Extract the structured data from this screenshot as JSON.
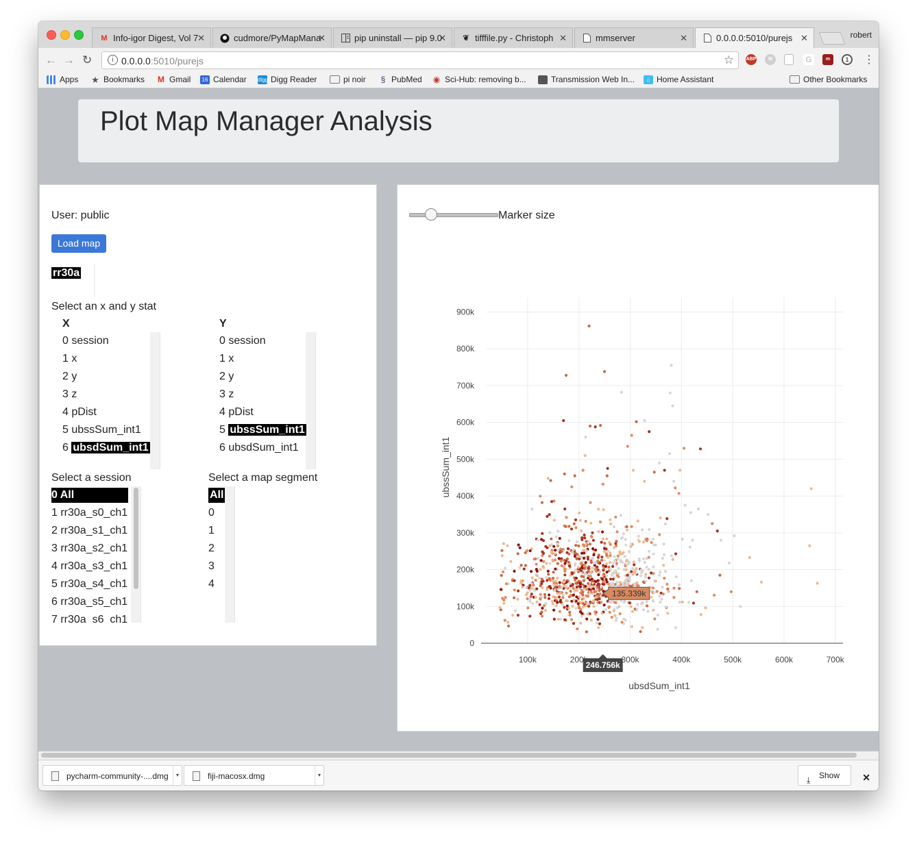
{
  "browser": {
    "tabs": [
      {
        "label": "Info-igor Digest, Vol 7",
        "icon": "gmail-icon"
      },
      {
        "label": "cudmore/PyMapMana",
        "icon": "github-icon"
      },
      {
        "label": "pip uninstall — pip 9.0",
        "icon": "doc-icon"
      },
      {
        "label": "tifffile.py - Christoph",
        "icon": "uci-icon"
      },
      {
        "label": "mmserver",
        "icon": "page-icon"
      },
      {
        "label": "0.0.0.0:5010/purejs",
        "icon": "page-icon"
      }
    ],
    "profile_name": "robert",
    "url_host": "0.0.0.0",
    "url_rest": ":5010/purejs",
    "bookmarks": [
      "Apps",
      "Bookmarks",
      "Gmail",
      "Calendar",
      "Digg Reader",
      "pi noir",
      "PubMed",
      "Sci-Hub: removing b...",
      "Transmission Web In...",
      "Home Assistant"
    ],
    "other_bookmarks": "Other Bookmarks",
    "calendar_day": "16",
    "ext_abp": "ABP"
  },
  "page": {
    "title": "Plot Map Manager Analysis",
    "user_label": "User: public",
    "load_button": "Load map",
    "map_name": "rr30a",
    "stat_prompt": "Select an x and y stat",
    "x_header": "X",
    "y_header": "Y",
    "stats": [
      {
        "num": "0",
        "name": "session"
      },
      {
        "num": "1",
        "name": "x"
      },
      {
        "num": "2",
        "name": "y"
      },
      {
        "num": "3",
        "name": "z"
      },
      {
        "num": "4",
        "name": "pDist"
      },
      {
        "num": "5",
        "name": "ubssSum_int1"
      },
      {
        "num": "6",
        "name": "ubsdSum_int1"
      }
    ],
    "x_selected_index": 6,
    "y_selected_index": 5,
    "session_prompt": "Select a session",
    "sessions": [
      "0 All",
      "1 rr30a_s0_ch1",
      "2 rr30a_s1_ch1",
      "3 rr30a_s2_ch1",
      "4 rr30a_s3_ch1",
      "5 rr30a_s4_ch1",
      "6 rr30a_s5_ch1",
      "7 rr30a_s6_ch1"
    ],
    "segment_prompt": "Select a map segment",
    "segments": [
      "All",
      "0",
      "1",
      "2",
      "3",
      "4"
    ],
    "marker_size_label": "Marker size",
    "marker_size_value": 0.25
  },
  "chart_data": {
    "type": "scatter",
    "xlabel": "ubsdSum_int1",
    "ylabel": "ubssSum_int1",
    "xlim": [
      20000,
      715000
    ],
    "ylim": [
      0,
      940000
    ],
    "x_ticks": [
      {
        "value": 100000,
        "label": "100k"
      },
      {
        "value": 200000,
        "label": "200k"
      },
      {
        "value": 300000,
        "label": "300k"
      },
      {
        "value": 400000,
        "label": "400k"
      },
      {
        "value": 500000,
        "label": "500k"
      },
      {
        "value": 600000,
        "label": "600k"
      },
      {
        "value": 700000,
        "label": "700k"
      }
    ],
    "y_ticks": [
      {
        "value": 0,
        "label": "0"
      },
      {
        "value": 100000,
        "label": "100k"
      },
      {
        "value": 200000,
        "label": "200k"
      },
      {
        "value": 300000,
        "label": "300k"
      },
      {
        "value": 400000,
        "label": "400k"
      },
      {
        "value": 500000,
        "label": "500k"
      },
      {
        "value": 600000,
        "label": "600k"
      },
      {
        "value": 700000,
        "label": "700k"
      },
      {
        "value": 800000,
        "label": "800k"
      },
      {
        "value": 900000,
        "label": "900k"
      }
    ],
    "grid": true,
    "colors": [
      "#d6d6d6",
      "#f0b890",
      "#e08a5c",
      "#c86a45",
      "#a8321e",
      "#8a1414"
    ],
    "cluster": {
      "center_x": 220000,
      "center_y": 165000,
      "spread_x": 75000,
      "spread_y": 80000,
      "count": 1000
    },
    "series": [
      {
        "values": [
          {
            "x": 220000,
            "y": 862000,
            "c": 3
          },
          {
            "x": 250000,
            "y": 738000,
            "c": 3
          },
          {
            "x": 175000,
            "y": 728000,
            "c": 3
          },
          {
            "x": 380000,
            "y": 755000,
            "c": 0
          },
          {
            "x": 378000,
            "y": 680000,
            "c": 0
          },
          {
            "x": 283000,
            "y": 682000,
            "c": 0
          },
          {
            "x": 383000,
            "y": 645000,
            "c": 0
          },
          {
            "x": 170000,
            "y": 605000,
            "c": 4
          },
          {
            "x": 222000,
            "y": 590000,
            "c": 3
          },
          {
            "x": 232000,
            "y": 588000,
            "c": 4
          },
          {
            "x": 242000,
            "y": 592000,
            "c": 3
          },
          {
            "x": 312000,
            "y": 602000,
            "c": 3
          },
          {
            "x": 328000,
            "y": 605000,
            "c": 0
          },
          {
            "x": 337000,
            "y": 575000,
            "c": 4
          },
          {
            "x": 213000,
            "y": 560000,
            "c": 0
          },
          {
            "x": 303000,
            "y": 565000,
            "c": 2
          },
          {
            "x": 295000,
            "y": 535000,
            "c": 2
          },
          {
            "x": 377000,
            "y": 515000,
            "c": 0
          },
          {
            "x": 405000,
            "y": 530000,
            "c": 2
          },
          {
            "x": 437000,
            "y": 528000,
            "c": 4
          },
          {
            "x": 212000,
            "y": 510000,
            "c": 1
          },
          {
            "x": 653000,
            "y": 420000,
            "c": 1
          },
          {
            "x": 650000,
            "y": 265000,
            "c": 1
          },
          {
            "x": 665000,
            "y": 163000,
            "c": 1
          },
          {
            "x": 556000,
            "y": 166000,
            "c": 1
          },
          {
            "x": 533000,
            "y": 233000,
            "c": 1
          },
          {
            "x": 503000,
            "y": 292000,
            "c": 0
          },
          {
            "x": 497000,
            "y": 140000,
            "c": 2
          },
          {
            "x": 477000,
            "y": 280000,
            "c": 0
          },
          {
            "x": 470000,
            "y": 305000,
            "c": 4
          },
          {
            "x": 460000,
            "y": 325000,
            "c": 2
          },
          {
            "x": 475000,
            "y": 185000,
            "c": 3
          },
          {
            "x": 447000,
            "y": 96000,
            "c": 1
          },
          {
            "x": 493000,
            "y": 218000,
            "c": 0
          },
          {
            "x": 452000,
            "y": 350000,
            "c": 0
          },
          {
            "x": 433000,
            "y": 365000,
            "c": 0
          },
          {
            "x": 418000,
            "y": 355000,
            "c": 0
          },
          {
            "x": 407000,
            "y": 375000,
            "c": 0
          },
          {
            "x": 397000,
            "y": 470000,
            "c": 1
          },
          {
            "x": 395000,
            "y": 407000,
            "c": 2
          },
          {
            "x": 388000,
            "y": 422000,
            "c": 2
          },
          {
            "x": 385000,
            "y": 440000,
            "c": 0
          },
          {
            "x": 367000,
            "y": 470000,
            "c": 4
          },
          {
            "x": 357000,
            "y": 490000,
            "c": 0
          },
          {
            "x": 347000,
            "y": 465000,
            "c": 3
          },
          {
            "x": 328000,
            "y": 440000,
            "c": 1
          },
          {
            "x": 306000,
            "y": 470000,
            "c": 1
          },
          {
            "x": 256000,
            "y": 475000,
            "c": 4
          },
          {
            "x": 255000,
            "y": 455000,
            "c": 3
          },
          {
            "x": 247000,
            "y": 432000,
            "c": 2
          },
          {
            "x": 208000,
            "y": 470000,
            "c": 2
          },
          {
            "x": 192000,
            "y": 455000,
            "c": 3
          },
          {
            "x": 172000,
            "y": 460000,
            "c": 3
          },
          {
            "x": 186000,
            "y": 425000,
            "c": 2
          },
          {
            "x": 140000,
            "y": 448000,
            "c": 1
          },
          {
            "x": 145000,
            "y": 442000,
            "c": 3
          },
          {
            "x": 147000,
            "y": 385000,
            "c": 4
          },
          {
            "x": 430000,
            "y": 140000,
            "c": 3
          },
          {
            "x": 438000,
            "y": 78000,
            "c": 1
          },
          {
            "x": 515000,
            "y": 100000,
            "c": 0
          },
          {
            "x": 402000,
            "y": 112000,
            "c": 1
          }
        ]
      }
    ],
    "hover_y_label": "135.339k",
    "hover_x_label": "246.756k",
    "hover_point": {
      "x": 246756,
      "y": 135339
    }
  }
}
